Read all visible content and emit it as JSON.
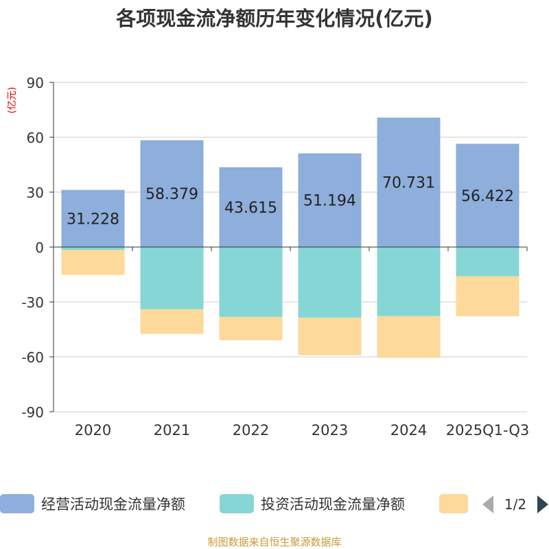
{
  "chart_data": {
    "type": "bar",
    "stacked": true,
    "title": "各项现金流净额历年变化情况(亿元)",
    "ylabel": "(亿元)",
    "xlabel": "",
    "categories": [
      "2020",
      "2021",
      "2022",
      "2023",
      "2024",
      "2025Q1-Q3"
    ],
    "ylim": [
      -90,
      90
    ],
    "yticks": [
      90,
      60,
      30,
      0,
      -30,
      -60,
      -90
    ],
    "grid": true,
    "series": [
      {
        "name": "经营活动现金流量净额",
        "color": "#8eaedb",
        "values": [
          31.228,
          58.379,
          43.615,
          51.194,
          70.731,
          56.422
        ],
        "labels": [
          "31.228",
          "58.379",
          "43.615",
          "51.194",
          "70.731",
          "56.422"
        ]
      },
      {
        "name": "投资活动现金流量净额",
        "color": "#86d6d6",
        "values": [
          -1.5,
          -34.0,
          -38.2,
          -38.6,
          -37.8,
          -16.0
        ]
      },
      {
        "name": "",
        "color": "#fdd99a",
        "values": [
          -13.7,
          -13.5,
          -12.7,
          -20.5,
          -22.7,
          -21.8
        ]
      }
    ]
  },
  "legend": {
    "items": [
      {
        "label": "经营活动现金流量净额",
        "color": "#8eaedb"
      },
      {
        "label": "投资活动现金流量净额",
        "color": "#86d6d6"
      },
      {
        "label": "",
        "color": "#fdd99a"
      }
    ],
    "page": "1/2"
  },
  "source": "制图数据来自恒生聚源数据库"
}
